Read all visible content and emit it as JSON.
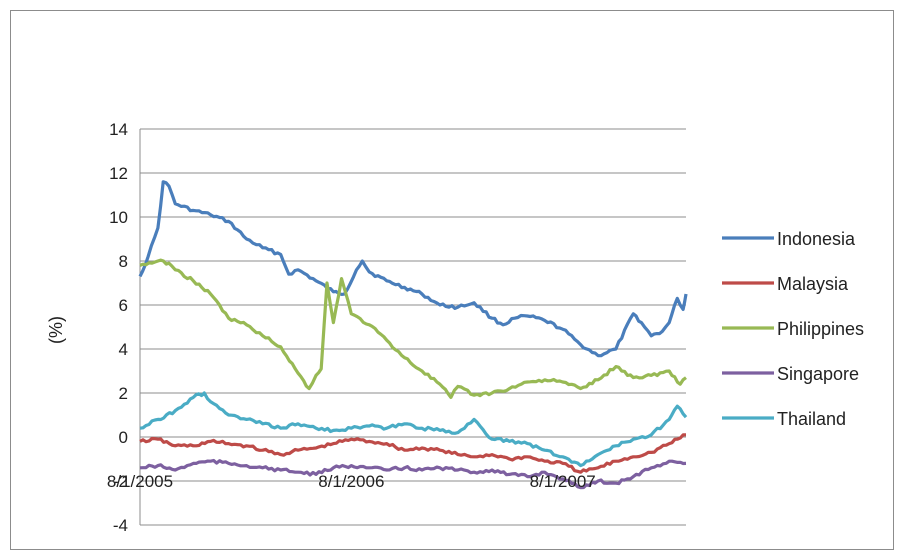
{
  "chart_data": {
    "type": "line",
    "title": "",
    "xlabel": "",
    "ylabel": "(%)",
    "ylim": [
      -4,
      14
    ],
    "yticks": [
      "14",
      "12",
      "10",
      "8",
      "6",
      "4",
      "2",
      "0",
      "-2",
      "-4"
    ],
    "xticks": [
      "8/1/2005",
      "8/1/2006",
      "8/1/2007"
    ],
    "x_range": [
      "8/1/2005",
      "3/1/2008"
    ],
    "grid": "horizontal",
    "legend_position": "right",
    "series": [
      {
        "name": "Indonesia",
        "color": "#4a7ebb",
        "points": [
          [
            "8/1/2005",
            7.3
          ],
          [
            "8/15/2005",
            8.2
          ],
          [
            "9/1/2005",
            9.5
          ],
          [
            "9/10/2005",
            11.6
          ],
          [
            "9/20/2005",
            11.4
          ],
          [
            "10/1/2005",
            10.6
          ],
          [
            "11/1/2005",
            10.3
          ],
          [
            "12/1/2005",
            10.1
          ],
          [
            "1/1/2006",
            9.8
          ],
          [
            "2/1/2006",
            9.0
          ],
          [
            "3/1/2006",
            8.6
          ],
          [
            "4/1/2006",
            8.3
          ],
          [
            "4/15/2006",
            7.4
          ],
          [
            "5/1/2006",
            7.6
          ],
          [
            "6/1/2006",
            7.1
          ],
          [
            "7/1/2006",
            6.6
          ],
          [
            "7/20/2006",
            6.5
          ],
          [
            "8/10/2006",
            7.6
          ],
          [
            "8/20/2006",
            8.0
          ],
          [
            "9/1/2006",
            7.5
          ],
          [
            "10/1/2006",
            7.1
          ],
          [
            "11/1/2006",
            6.8
          ],
          [
            "12/1/2006",
            6.5
          ],
          [
            "1/1/2007",
            6.0
          ],
          [
            "2/1/2007",
            5.9
          ],
          [
            "3/1/2007",
            6.1
          ],
          [
            "4/1/2007",
            5.4
          ],
          [
            "4/20/2007",
            5.1
          ],
          [
            "5/10/2007",
            5.4
          ],
          [
            "6/1/2007",
            5.5
          ],
          [
            "7/1/2007",
            5.3
          ],
          [
            "8/1/2007",
            4.9
          ],
          [
            "9/1/2007",
            4.2
          ],
          [
            "10/1/2007",
            3.7
          ],
          [
            "11/1/2007",
            4.0
          ],
          [
            "12/1/2007",
            5.6
          ],
          [
            "12/15/2007",
            5.2
          ],
          [
            "1/1/2008",
            4.6
          ],
          [
            "1/20/2008",
            4.8
          ],
          [
            "2/1/2008",
            5.2
          ],
          [
            "2/15/2008",
            6.3
          ],
          [
            "2/25/2008",
            5.8
          ],
          [
            "3/1/2008",
            6.5
          ]
        ]
      },
      {
        "name": "Malaysia",
        "color": "#be4b48",
        "points": [
          [
            "8/1/2005",
            -0.2
          ],
          [
            "9/1/2005",
            -0.1
          ],
          [
            "10/1/2005",
            -0.4
          ],
          [
            "11/1/2005",
            -0.4
          ],
          [
            "12/1/2005",
            -0.2
          ],
          [
            "1/1/2006",
            -0.3
          ],
          [
            "2/1/2006",
            -0.4
          ],
          [
            "3/1/2006",
            -0.6
          ],
          [
            "4/1/2006",
            -0.8
          ],
          [
            "5/1/2006",
            -0.6
          ],
          [
            "6/1/2006",
            -0.5
          ],
          [
            "7/1/2006",
            -0.3
          ],
          [
            "8/1/2006",
            -0.1
          ],
          [
            "9/1/2006",
            -0.2
          ],
          [
            "10/1/2006",
            -0.3
          ],
          [
            "11/1/2006",
            -0.6
          ],
          [
            "12/1/2006",
            -0.5
          ],
          [
            "1/1/2007",
            -0.6
          ],
          [
            "2/1/2007",
            -0.8
          ],
          [
            "3/1/2007",
            -0.9
          ],
          [
            "4/1/2007",
            -0.8
          ],
          [
            "5/1/2007",
            -1.0
          ],
          [
            "6/1/2007",
            -0.9
          ],
          [
            "7/1/2007",
            -1.1
          ],
          [
            "8/1/2007",
            -1.2
          ],
          [
            "9/1/2007",
            -1.6
          ],
          [
            "10/1/2007",
            -1.4
          ],
          [
            "11/1/2007",
            -1.1
          ],
          [
            "12/1/2007",
            -0.9
          ],
          [
            "1/1/2008",
            -0.7
          ],
          [
            "2/1/2008",
            -0.3
          ],
          [
            "3/1/2008",
            0.1
          ]
        ]
      },
      {
        "name": "Philippines",
        "color": "#98b954",
        "points": [
          [
            "8/1/2005",
            7.8
          ],
          [
            "9/1/2005",
            8.0
          ],
          [
            "9/20/2005",
            7.9
          ],
          [
            "10/1/2005",
            7.6
          ],
          [
            "11/1/2005",
            7.1
          ],
          [
            "12/1/2005",
            6.5
          ],
          [
            "1/1/2006",
            5.4
          ],
          [
            "2/1/2006",
            5.1
          ],
          [
            "3/1/2006",
            4.6
          ],
          [
            "4/1/2006",
            4.1
          ],
          [
            "5/1/2006",
            2.9
          ],
          [
            "5/20/2006",
            2.2
          ],
          [
            "6/1/2006",
            2.8
          ],
          [
            "6/10/2006",
            3.1
          ],
          [
            "6/20/2006",
            7.0
          ],
          [
            "7/1/2006",
            5.2
          ],
          [
            "7/15/2006",
            7.2
          ],
          [
            "8/1/2006",
            5.6
          ],
          [
            "9/1/2006",
            5.1
          ],
          [
            "10/1/2006",
            4.4
          ],
          [
            "11/1/2006",
            3.6
          ],
          [
            "12/1/2006",
            3.0
          ],
          [
            "1/1/2007",
            2.4
          ],
          [
            "1/20/2007",
            1.8
          ],
          [
            "2/1/2007",
            2.3
          ],
          [
            "3/1/2007",
            1.9
          ],
          [
            "4/1/2007",
            2.0
          ],
          [
            "5/1/2007",
            2.2
          ],
          [
            "6/1/2007",
            2.5
          ],
          [
            "7/1/2007",
            2.6
          ],
          [
            "8/1/2007",
            2.5
          ],
          [
            "9/1/2007",
            2.2
          ],
          [
            "10/1/2007",
            2.6
          ],
          [
            "11/1/2007",
            3.2
          ],
          [
            "12/1/2007",
            2.7
          ],
          [
            "1/1/2008",
            2.8
          ],
          [
            "2/1/2008",
            3.0
          ],
          [
            "2/20/2008",
            2.4
          ],
          [
            "3/1/2008",
            2.7
          ]
        ]
      },
      {
        "name": "Singapore",
        "color": "#7d60a0",
        "points": [
          [
            "8/1/2005",
            -1.4
          ],
          [
            "9/1/2005",
            -1.3
          ],
          [
            "10/1/2005",
            -1.5
          ],
          [
            "11/1/2005",
            -1.2
          ],
          [
            "12/1/2005",
            -1.1
          ],
          [
            "1/1/2006",
            -1.2
          ],
          [
            "2/1/2006",
            -1.3
          ],
          [
            "3/1/2006",
            -1.4
          ],
          [
            "4/1/2006",
            -1.5
          ],
          [
            "5/1/2006",
            -1.6
          ],
          [
            "6/1/2006",
            -1.7
          ],
          [
            "7/1/2006",
            -1.4
          ],
          [
            "8/1/2006",
            -1.3
          ],
          [
            "9/1/2006",
            -1.4
          ],
          [
            "10/1/2006",
            -1.5
          ],
          [
            "11/1/2006",
            -1.4
          ],
          [
            "12/1/2006",
            -1.5
          ],
          [
            "1/1/2007",
            -1.4
          ],
          [
            "2/1/2007",
            -1.5
          ],
          [
            "3/1/2007",
            -1.6
          ],
          [
            "4/1/2007",
            -1.5
          ],
          [
            "5/1/2007",
            -1.7
          ],
          [
            "6/1/2007",
            -1.8
          ],
          [
            "7/1/2007",
            -1.6
          ],
          [
            "8/1/2007",
            -1.9
          ],
          [
            "9/1/2007",
            -2.3
          ],
          [
            "10/1/2007",
            -2.0
          ],
          [
            "11/1/2007",
            -2.1
          ],
          [
            "12/1/2007",
            -1.8
          ],
          [
            "1/1/2008",
            -1.4
          ],
          [
            "2/1/2008",
            -1.1
          ],
          [
            "3/1/2008",
            -1.2
          ]
        ]
      },
      {
        "name": "Thailand",
        "color": "#4aacc5",
        "points": [
          [
            "8/1/2005",
            0.4
          ],
          [
            "9/1/2005",
            0.8
          ],
          [
            "10/1/2005",
            1.2
          ],
          [
            "11/1/2005",
            1.8
          ],
          [
            "11/20/2005",
            2.0
          ],
          [
            "12/1/2005",
            1.6
          ],
          [
            "1/1/2006",
            1.0
          ],
          [
            "2/1/2006",
            0.8
          ],
          [
            "3/1/2006",
            0.6
          ],
          [
            "4/1/2006",
            0.4
          ],
          [
            "5/1/2006",
            0.6
          ],
          [
            "6/1/2006",
            0.4
          ],
          [
            "7/1/2006",
            0.3
          ],
          [
            "8/1/2006",
            0.4
          ],
          [
            "9/1/2006",
            0.5
          ],
          [
            "10/1/2006",
            0.4
          ],
          [
            "11/1/2006",
            0.6
          ],
          [
            "12/1/2006",
            0.4
          ],
          [
            "1/1/2007",
            0.3
          ],
          [
            "2/1/2007",
            0.2
          ],
          [
            "3/1/2007",
            0.8
          ],
          [
            "4/1/2007",
            -0.1
          ],
          [
            "5/1/2007",
            -0.2
          ],
          [
            "6/1/2007",
            -0.3
          ],
          [
            "7/1/2007",
            -0.6
          ],
          [
            "8/1/2007",
            -0.9
          ],
          [
            "9/1/2007",
            -1.3
          ],
          [
            "10/1/2007",
            -0.8
          ],
          [
            "11/1/2007",
            -0.4
          ],
          [
            "12/1/2007",
            -0.1
          ],
          [
            "1/1/2008",
            0.1
          ],
          [
            "2/1/2008",
            0.8
          ],
          [
            "2/15/2008",
            1.4
          ],
          [
            "3/1/2008",
            0.9
          ]
        ]
      }
    ]
  }
}
